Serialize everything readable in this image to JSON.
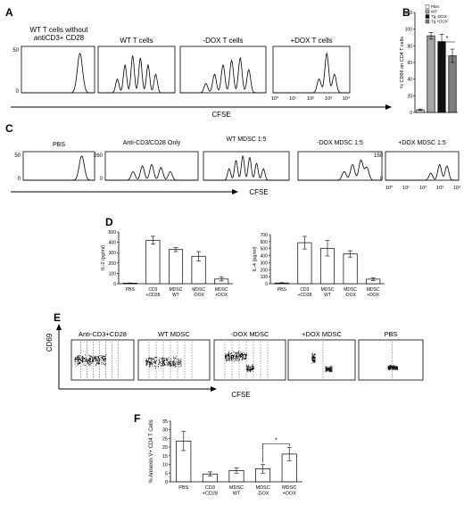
{
  "panel_letters": [
    "A",
    "B",
    "C",
    "D",
    "E",
    "F"
  ],
  "panelA": {
    "titles": [
      "WT T cells without\nantiCD3+ CD28",
      "WT T cells",
      "-DOX T cells",
      "+DOX T cells"
    ],
    "xlabel": "CFSE",
    "y_ticks": [
      "0",
      "50"
    ],
    "x_ticks": [
      "10⁰",
      "10¹",
      "10²",
      "10³",
      "10⁴"
    ]
  },
  "panelC": {
    "titles": [
      "PBS",
      "Anti-CD3/CD28 Only",
      "WT MDSC  1:5",
      "-DOX MDSC  1:5",
      "+DOX MDSC 1:5"
    ],
    "xlabel": "CFSE",
    "y_ticks": [
      [
        "0",
        "50"
      ],
      [
        "0",
        "260"
      ],
      [
        "0",
        "150"
      ]
    ],
    "x_ticks": [
      "10⁰",
      "10¹",
      "10²",
      "10³",
      "10⁴"
    ]
  },
  "panelE": {
    "titles": [
      "Anti-CD3+CD28",
      "WT MDSC",
      "-DOX MDSC",
      "+DOX MDSC",
      "PBS"
    ],
    "ylabel": "CD69",
    "xlabel": "CFSE"
  },
  "chart_data": [
    {
      "panel": "B",
      "type": "bar",
      "ylabel": "% CD69 on CD4 T cells",
      "ylim": [
        0,
        120
      ],
      "yticks": [
        0,
        20,
        40,
        60,
        80,
        100,
        120
      ],
      "legend": [
        "PBS",
        "WT",
        "Tg -DOX",
        "Tg +DOX"
      ],
      "legend_position": "top-right",
      "colors": [
        "#ffffff",
        "#a6a6a6",
        "#111111",
        "#7f7f7f"
      ],
      "values": [
        3,
        92,
        85,
        68
      ],
      "errors": [
        1,
        4,
        9,
        8
      ],
      "significance": "*"
    },
    {
      "panel": "D-left",
      "type": "bar",
      "ylabel": "IL-2 (pg/ml)",
      "ylim": [
        0,
        500
      ],
      "yticks": [
        0,
        100,
        200,
        300,
        400,
        500
      ],
      "categories": [
        "PBS",
        "CD3\n+CD28",
        "MDSC\nWT",
        "MDSC\n-DOX",
        "MDSC\n+DOX"
      ],
      "values": [
        5,
        420,
        330,
        265,
        45
      ],
      "errors": [
        3,
        38,
        20,
        45,
        18
      ]
    },
    {
      "panel": "D-right",
      "type": "bar",
      "ylabel": "IL-4 (pg/ml)",
      "ylim": [
        0,
        700
      ],
      "yticks": [
        0,
        100,
        200,
        300,
        400,
        500,
        600,
        700
      ],
      "categories": [
        "PBS",
        "CD3\n+CD28",
        "MDSC\nWT",
        "MDSC\n-DOX",
        "MDSC\n+DOX"
      ],
      "values": [
        10,
        585,
        505,
        425,
        65
      ],
      "errors": [
        5,
        90,
        110,
        45,
        20
      ]
    },
    {
      "panel": "F",
      "type": "bar",
      "ylabel": "% Annexin V+ CD4 T Cells",
      "ylim": [
        0,
        35
      ],
      "yticks": [
        0,
        5,
        10,
        15,
        20,
        25,
        30,
        35
      ],
      "categories": [
        "PBS",
        "CD3\n+CD28",
        "MDSC\nWT",
        "MDSC\n-DOX",
        "MDSC\n+DOX"
      ],
      "values": [
        23.5,
        4.5,
        6.5,
        7.5,
        16
      ],
      "errors": [
        5.5,
        1.2,
        1.5,
        2.5,
        3.8
      ],
      "significance": "*"
    }
  ]
}
